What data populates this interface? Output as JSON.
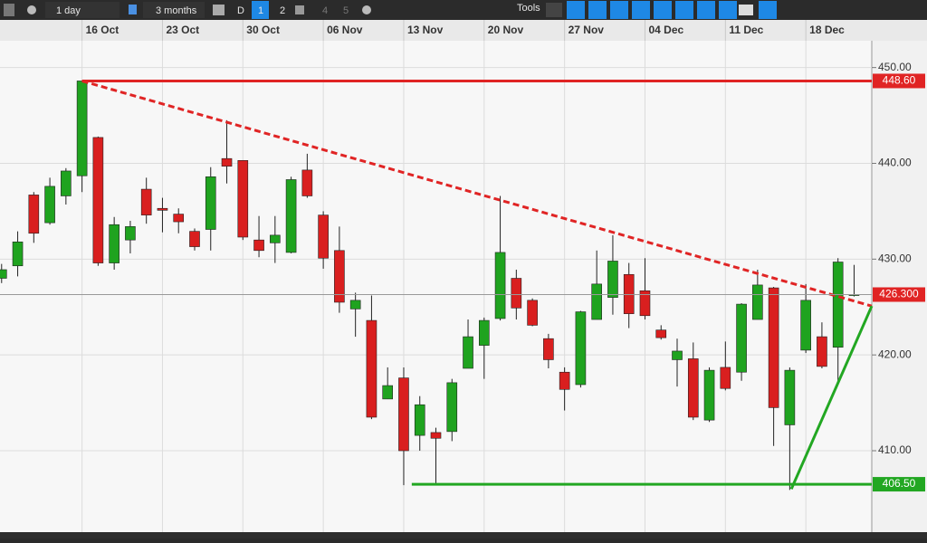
{
  "toolbar": {
    "interval": "1 day",
    "range": "3 months",
    "buttons": [
      "D",
      "1",
      "2",
      "4",
      "5"
    ],
    "tools": "Tools"
  },
  "chart_data": {
    "type": "candlestick",
    "categories": [
      null,
      null,
      null,
      null,
      null,
      "16 Oct",
      null,
      null,
      null,
      null,
      "23 Oct",
      null,
      null,
      null,
      null,
      "30 Oct",
      null,
      null,
      null,
      null,
      "06 Nov",
      null,
      null,
      null,
      null,
      "13 Nov",
      null,
      null,
      null,
      null,
      "20 Nov",
      null,
      null,
      null,
      null,
      "27 Nov",
      null,
      null,
      null,
      null,
      "04 Dec",
      null,
      null,
      null,
      null,
      "11 Dec",
      null,
      null,
      null,
      null,
      "18 Dec",
      null,
      null,
      null
    ],
    "open": [
      428,
      429.3,
      436.7,
      433.8,
      436.6,
      438.7,
      442.7,
      429.6,
      432,
      437.3,
      435.3,
      434.7,
      432.9,
      433.1,
      440.5,
      440.3,
      432,
      431.7,
      430.7,
      439.3,
      434.6,
      430.9,
      424.8,
      423.6,
      415.4,
      417.6,
      411.6,
      411.9,
      412,
      418.6,
      421,
      423.8,
      428,
      425.7,
      421.7,
      418.2,
      416.9,
      423.7,
      426,
      428.4,
      426.7,
      422.6,
      419.5,
      419.6,
      413.2,
      418.7,
      418.2,
      423.7,
      427,
      412.7,
      420.5,
      421.9,
      420.8,
      426.2
    ],
    "high": [
      429.5,
      432.9,
      437,
      438.5,
      439.5,
      448.6,
      442.8,
      434.4,
      434,
      438.5,
      436.4,
      435.3,
      433.2,
      439.6,
      444.5,
      440.3,
      434.5,
      434.5,
      438.6,
      441,
      435,
      433.4,
      426.5,
      426.2,
      418.7,
      418.7,
      415.7,
      412.4,
      417.5,
      423.7,
      423.9,
      436.6,
      428.9,
      425.9,
      422.2,
      418.7,
      424.6,
      430.9,
      432.5,
      429.6,
      430.1,
      423.1,
      421.7,
      421.3,
      418.7,
      421.4,
      425.4,
      428.9,
      427.1,
      418.7,
      427.4,
      423.4,
      430.1,
      429.4
    ],
    "low": [
      427.5,
      428.2,
      431.7,
      433.6,
      435.7,
      437,
      429.3,
      428.9,
      430.6,
      433.7,
      432.8,
      432.7,
      430.9,
      430.9,
      437.9,
      432,
      430.2,
      429.6,
      430.6,
      436.4,
      429,
      424.4,
      421.9,
      413.3,
      415.4,
      406.4,
      410,
      406.4,
      411,
      418.6,
      417.5,
      423.6,
      423.7,
      423,
      418.6,
      414.2,
      416.6,
      423.7,
      424.2,
      422.8,
      423.7,
      421.6,
      416.7,
      413.2,
      413,
      416.3,
      417.3,
      423.7,
      410.5,
      405.9,
      420.2,
      418.6,
      417.3,
      426.1
    ],
    "close": [
      428.9,
      431.8,
      432.7,
      437.6,
      439.2,
      448.6,
      429.6,
      433.6,
      433.4,
      434.6,
      435.1,
      433.9,
      431.3,
      438.6,
      439.7,
      432.3,
      430.9,
      432.5,
      438.3,
      436.6,
      430.1,
      425.5,
      425.7,
      413.5,
      416.8,
      410,
      414.8,
      411.3,
      417.1,
      421.9,
      423.6,
      430.7,
      424.9,
      423.1,
      419.5,
      416.4,
      424.5,
      427.4,
      429.8,
      424.3,
      424.1,
      421.8,
      420.4,
      413.5,
      418.4,
      416.5,
      425.3,
      427.3,
      414.5,
      418.4,
      425.7,
      418.8,
      429.7,
      426.3
    ],
    "up_color": "#1fa31f",
    "down_color": "#d91f1f",
    "xlim": [
      -0.1,
      54.1
    ],
    "ylim": [
      401.5,
      452.8
    ],
    "yticks": [
      {
        "value": 450,
        "label": "450.00"
      },
      {
        "value": 440,
        "label": "440.00"
      },
      {
        "value": 430,
        "label": "430.00"
      },
      {
        "value": 420,
        "label": "420.00"
      },
      {
        "value": 410,
        "label": "410.00"
      }
    ],
    "grid": true,
    "price_lines": [
      {
        "value": 448.6,
        "label": "448.60",
        "color": "#e02424",
        "start": 5
      },
      {
        "value": 426.3,
        "label": "426.300",
        "color": "#e02424",
        "line_color": "#999999",
        "start": -0.1
      },
      {
        "value": 406.5,
        "label": "406.50",
        "color": "#22a722",
        "start": 25.5
      }
    ],
    "trend_lines": [
      {
        "x": [
          5,
          54.1
        ],
        "y": [
          448.6,
          425.1
        ],
        "color": "#e02424",
        "dashed": true
      },
      {
        "x": [
          49.1,
          54.1
        ],
        "y": [
          406,
          425.1
        ],
        "color": "#22a722",
        "dashed": false
      }
    ]
  }
}
